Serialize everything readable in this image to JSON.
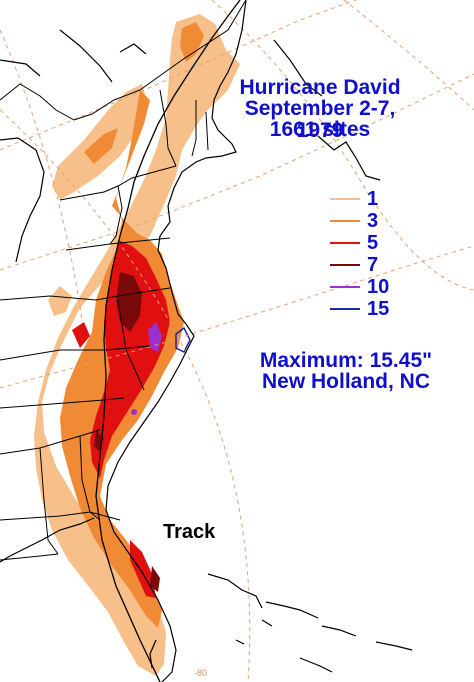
{
  "title": {
    "line1": "Hurricane David",
    "line2": "September 2-7, 1979",
    "line3": "1661 sites"
  },
  "legend": [
    {
      "label": "1",
      "color": "#f7c08a"
    },
    {
      "label": "3",
      "color": "#f08a34"
    },
    {
      "label": "5",
      "color": "#e01010"
    },
    {
      "label": "7",
      "color": "#7a0a0a"
    },
    {
      "label": "10",
      "color": "#9b30d0"
    },
    {
      "label": "15",
      "color": "#1a2aa0"
    }
  ],
  "maximum": {
    "line1": "Maximum:  15.45\"",
    "line2": "New Holland, NC"
  },
  "track_label": "Track",
  "longitude_label": "-80",
  "colors": {
    "text_blue": "#1010cc",
    "graticule": "#e8a070",
    "coast": "#000000"
  }
}
